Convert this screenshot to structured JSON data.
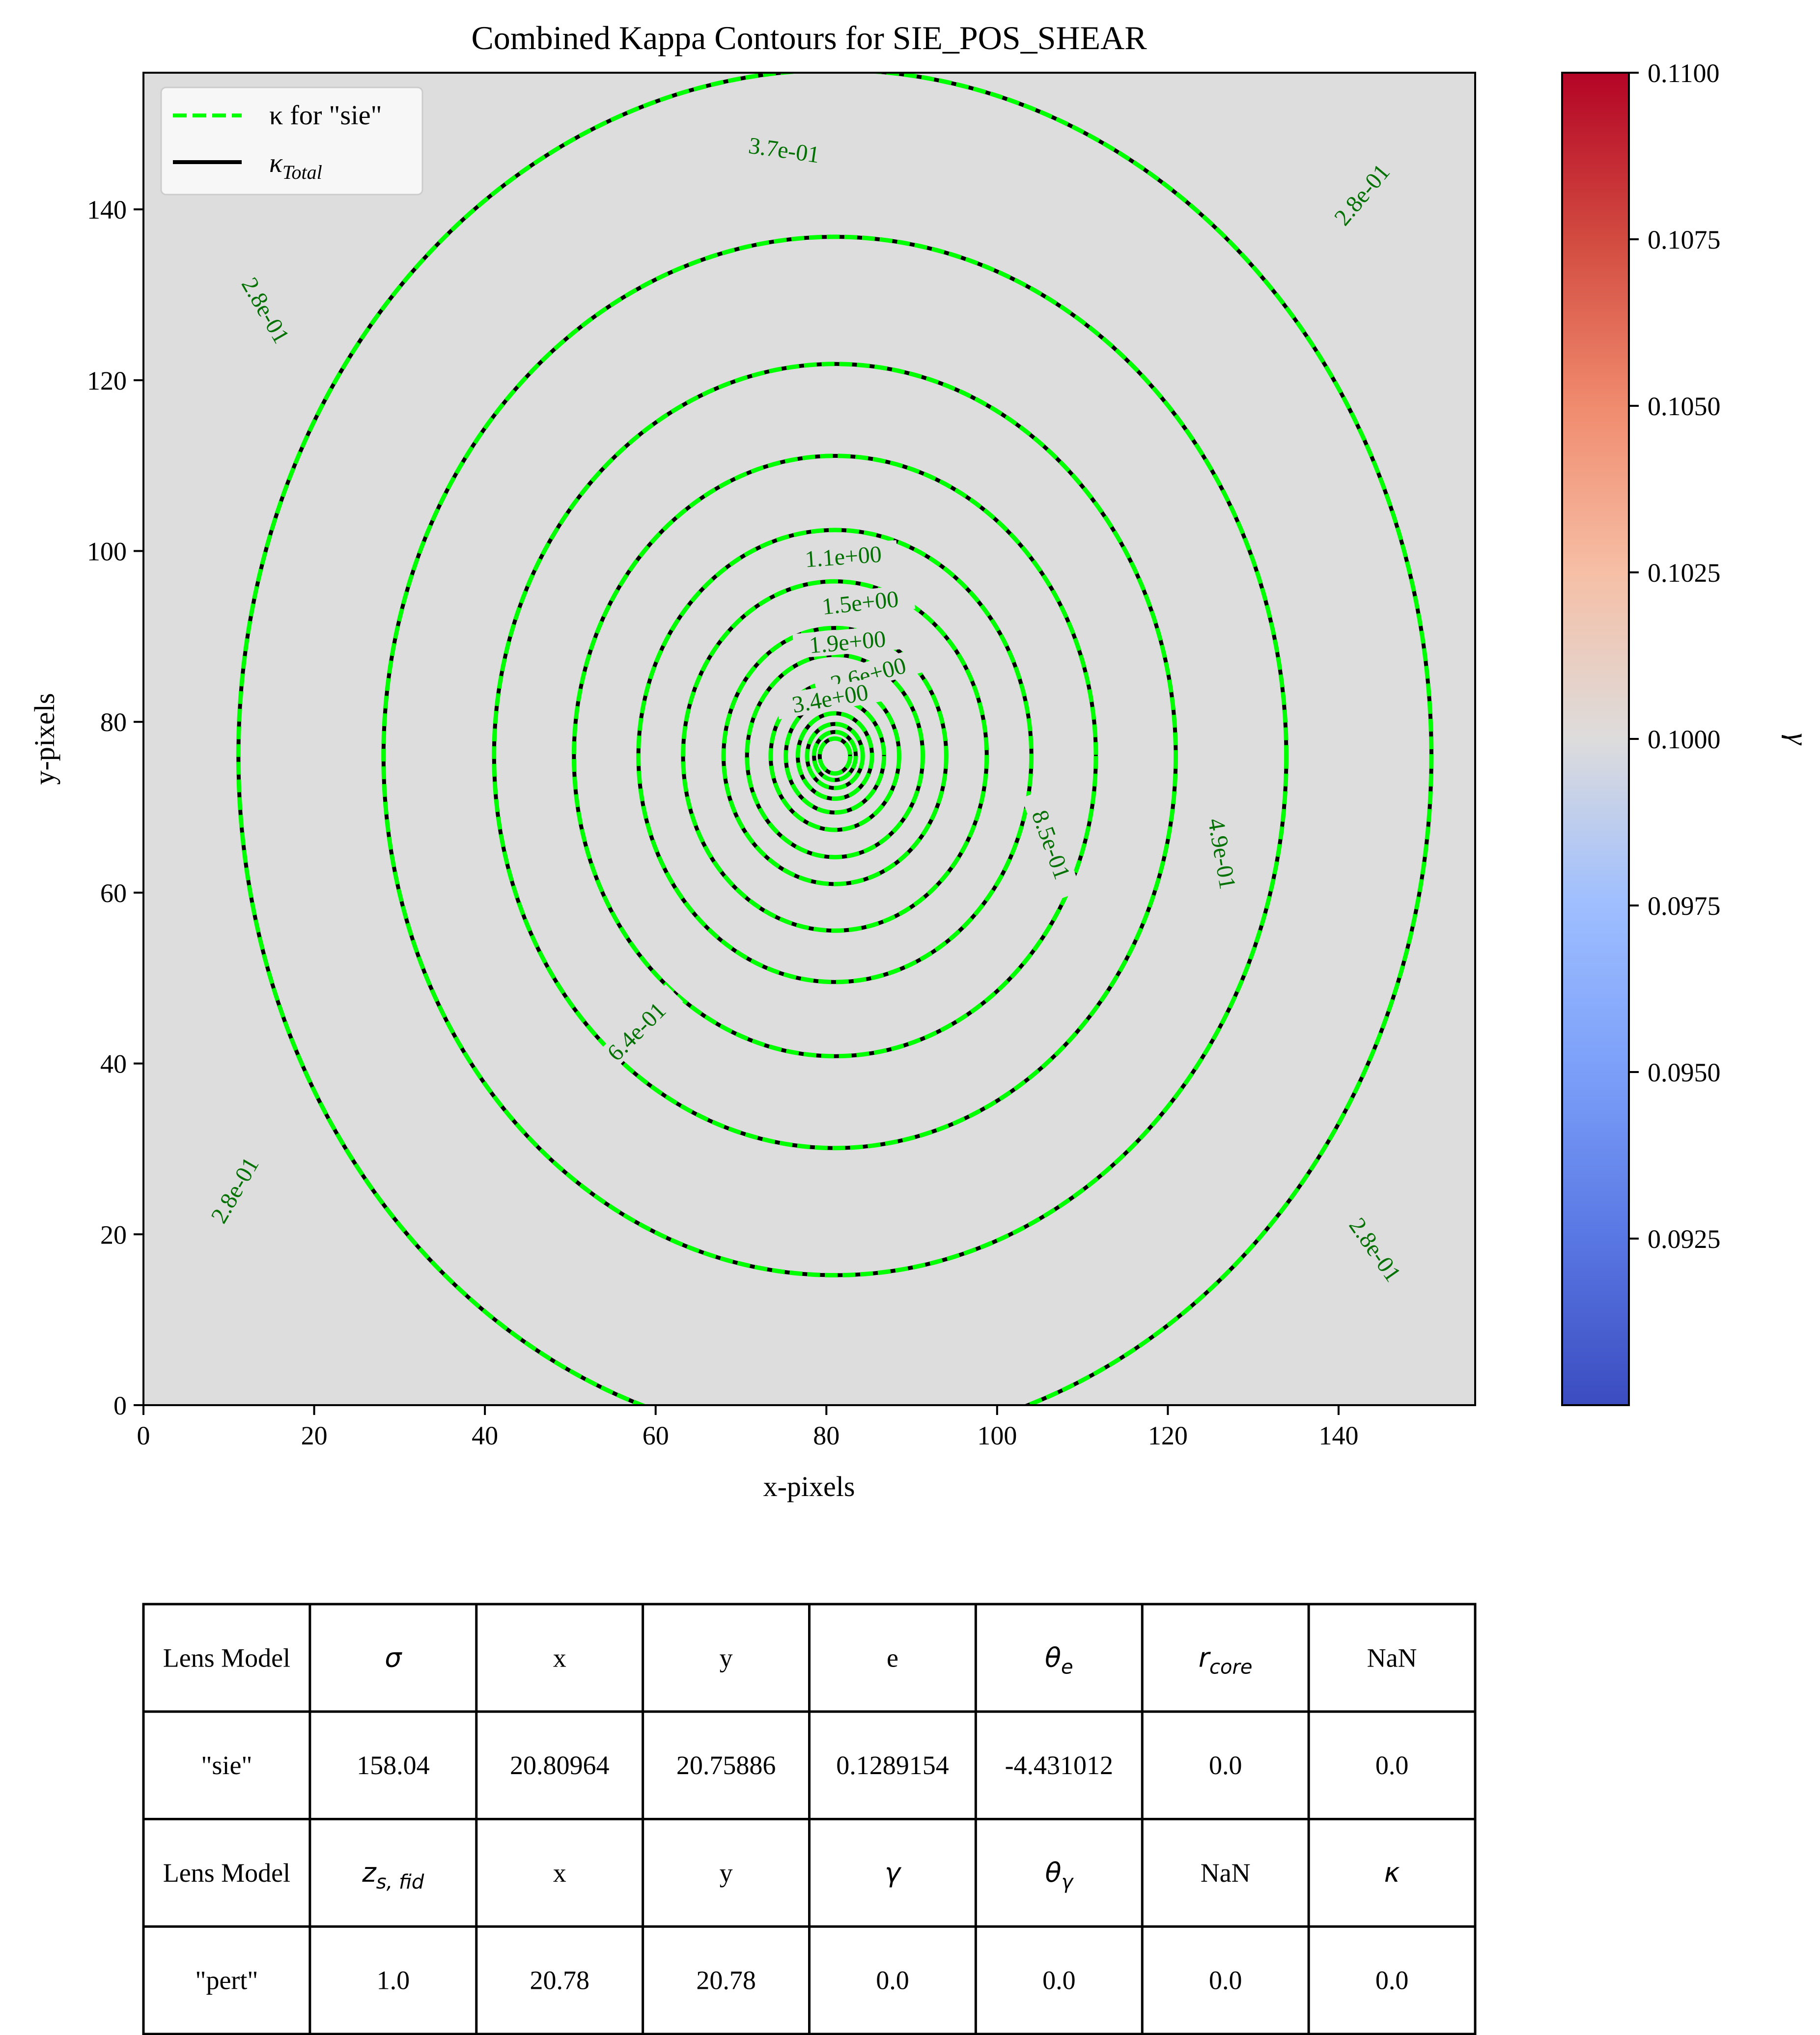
{
  "chart_data": {
    "type": "contour",
    "title": "Combined Kappa Contours for SIE_POS_SHEAR",
    "xlabel": "x-pixels",
    "ylabel": "y-pixels",
    "xlim": [
      0,
      156
    ],
    "ylim": [
      0,
      156
    ],
    "x_ticks": [
      0,
      20,
      40,
      60,
      80,
      100,
      120,
      140
    ],
    "y_ticks": [
      0,
      20,
      40,
      60,
      80,
      100,
      120,
      140
    ],
    "background_color": "#dddddd",
    "center": [
      81,
      76
    ],
    "axis_ratio": 1.15,
    "legend": {
      "placement": "upper-left",
      "entries": [
        {
          "name": "κ for \"sie\"",
          "style": "dashed",
          "color": "#00ff00"
        },
        {
          "name": "κTotal",
          "style": "solid",
          "color": "#000000"
        }
      ]
    },
    "contour_levels": [
      0.28,
      0.37,
      0.49,
      0.64,
      0.85,
      1.1,
      1.5,
      1.9,
      2.6,
      3.4
    ],
    "contour_labels": [
      {
        "text": "3.7e-01",
        "x": 75,
        "y": 146.6,
        "angle": 8
      },
      {
        "text": "2.8e-01",
        "x": 14,
        "y": 128,
        "angle": 60
      },
      {
        "text": "2.8e-01",
        "x": 143,
        "y": 141.5,
        "angle": -50
      },
      {
        "text": "2.8e-01",
        "x": 11,
        "y": 25,
        "angle": -60
      },
      {
        "text": "2.8e-01",
        "x": 144,
        "y": 18,
        "angle": 55
      },
      {
        "text": "1.1e+00",
        "x": 82,
        "y": 99,
        "angle": -4
      },
      {
        "text": "1.5e+00",
        "x": 84,
        "y": 93.6,
        "angle": -6
      },
      {
        "text": "1.9e+00",
        "x": 82.5,
        "y": 89,
        "angle": -5
      },
      {
        "text": "2.6e+00",
        "x": 85,
        "y": 85.2,
        "angle": -15
      },
      {
        "text": "3.4e+00",
        "x": 80.5,
        "y": 82.4,
        "angle": -10
      },
      {
        "text": "8.5e-01",
        "x": 106,
        "y": 65.5,
        "angle": 70
      },
      {
        "text": "4.9e-01",
        "x": 126,
        "y": 64.5,
        "angle": 80
      },
      {
        "text": "6.4e-01",
        "x": 58,
        "y": 43.5,
        "angle": -45
      }
    ],
    "colorbar": {
      "label": "γ",
      "range": [
        0.09,
        0.11
      ],
      "ticks": [
        "0.1100",
        "0.1075",
        "0.1050",
        "0.1025",
        "0.1000",
        "0.0975",
        "0.0950",
        "0.0925"
      ],
      "colormap": "coolwarm"
    }
  },
  "table": {
    "rows": [
      [
        "Lens Model",
        "σ",
        "x",
        "y",
        "e",
        "θe",
        "rcore",
        "NaN"
      ],
      [
        "\"sie\"",
        "158.04",
        "20.80964",
        "20.75886",
        "0.1289154",
        "-4.431012",
        "0.0",
        "0.0"
      ],
      [
        "Lens Model",
        "zs,fid",
        "x",
        "y",
        "γ",
        "θγ",
        "NaN",
        "κ"
      ],
      [
        "\"pert\"",
        "1.0",
        "20.78",
        "20.78",
        "0.0",
        "0.0",
        "0.0",
        "0.0"
      ]
    ]
  }
}
